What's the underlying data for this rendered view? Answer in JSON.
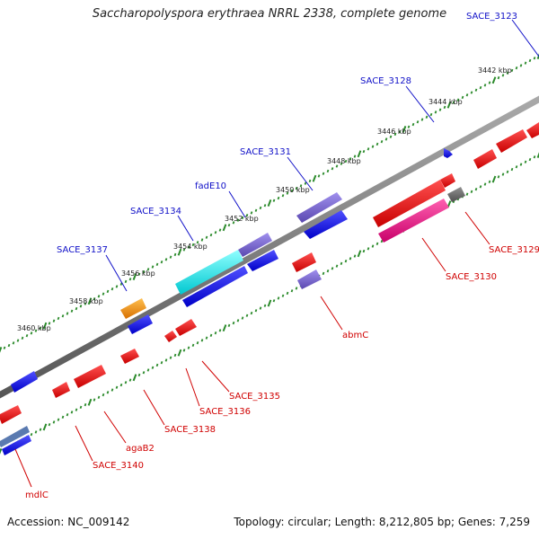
{
  "title": "Saccharopolyspora erythraea NRRL 2338, complete genome",
  "footer": {
    "accession": "Accession: NC_009142",
    "topology": "Topology: circular; Length: 8,212,805 bp; Genes: 7,259"
  },
  "kbp_labels": [
    "3442 kbp",
    "3444 kbp",
    "3446 kbp",
    "3448 kbp",
    "3450 kbp",
    "3452 kbp",
    "3454 kbp",
    "3456 kbp",
    "3458 kbp",
    "3460 kbp"
  ],
  "forward_gene_labels": [
    "SACE_3123",
    "SACE_3128",
    "SACE_3131",
    "fadE10",
    "SACE_3134",
    "SACE_3137"
  ],
  "reverse_gene_labels": [
    "SACE_3129",
    "SACE_3130",
    "abmC",
    "SACE_3135",
    "SACE_3136",
    "SACE_3138",
    "agaB2",
    "SACE_3140",
    "mdlC"
  ],
  "colors": {
    "backbone": "#7a7a7a",
    "forward_label": "#1010c8",
    "reverse_label": "#d00000",
    "tick_forward": "#2a8a2a",
    "tick_reverse": "#2a8a2a",
    "blue": "#1414e0",
    "slate": "#7b68d0",
    "cyan": "#20f0f0",
    "orange": "#f09010",
    "red": "#e81010",
    "pink": "#e81880",
    "gray": "#606060"
  }
}
